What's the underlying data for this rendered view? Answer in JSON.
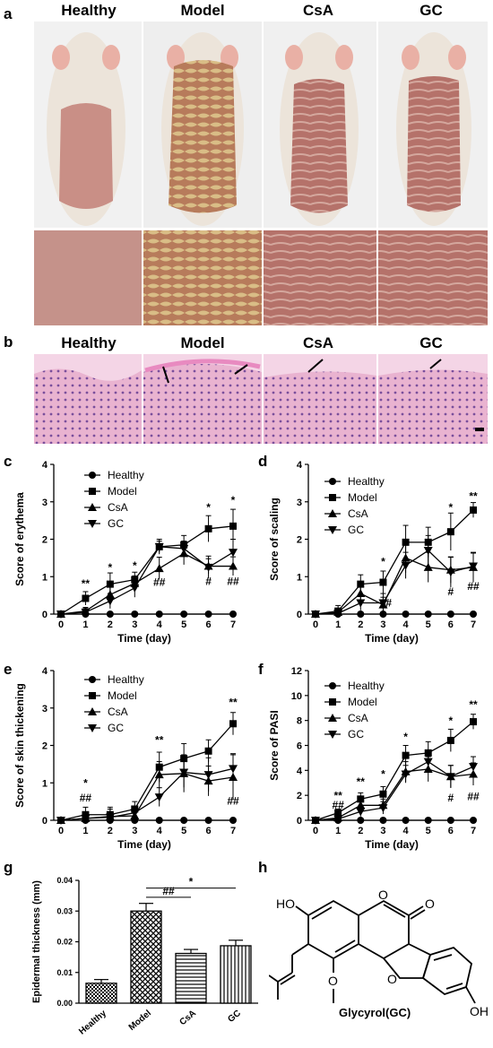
{
  "panels": {
    "a": "a",
    "b": "b",
    "c": "c",
    "d": "d",
    "e": "e",
    "f": "f",
    "g": "g",
    "h": "h"
  },
  "photo_groups": [
    "Healthy",
    "Model",
    "CsA",
    "GC"
  ],
  "histo_groups": [
    "Healthy",
    "Model",
    "CsA",
    "GC"
  ],
  "structure_label": "Glycyrol(GC)",
  "chemistry": {
    "oh1": "HO",
    "oh2": "OH",
    "ome": "O",
    "o1": "O",
    "o2": "O",
    "o3": "O"
  },
  "colors": {
    "healthy_skin": "#c98f86",
    "model_skin": "#c9a070",
    "fur": "#ece4da",
    "he_stain": "#e7a6c8",
    "nuclei": "#7a4f9c"
  },
  "chart_data": [
    {
      "id": "c",
      "type": "line",
      "ylabel": "Score of erythema",
      "xlabel": "Time (day)",
      "x": [
        0,
        1,
        2,
        3,
        4,
        5,
        6,
        7
      ],
      "xticks": [
        "0",
        "1",
        "2",
        "3",
        "4",
        "5",
        "6",
        "7"
      ],
      "ylim": [
        0,
        4
      ],
      "yticks": [
        "0",
        "1",
        "2",
        "3",
        "4"
      ],
      "legend": [
        "Healthy",
        "Model",
        "CsA",
        "GC"
      ],
      "series": [
        {
          "name": "Healthy",
          "marker": "circle",
          "values": [
            0,
            0,
            0,
            0,
            0,
            0,
            0,
            0
          ],
          "err": [
            0,
            0,
            0,
            0,
            0,
            0,
            0,
            0
          ]
        },
        {
          "name": "Model",
          "marker": "square",
          "values": [
            0,
            0.42,
            0.8,
            0.92,
            1.8,
            1.85,
            2.28,
            2.35
          ],
          "err": [
            0,
            0.18,
            0.3,
            0.2,
            0.2,
            0.25,
            0.35,
            0.45
          ]
        },
        {
          "name": "CsA",
          "marker": "triangle",
          "values": [
            0,
            0.08,
            0.52,
            0.82,
            1.22,
            1.62,
            1.28,
            1.28
          ],
          "err": [
            0,
            0.1,
            0.25,
            0.2,
            0.3,
            0.3,
            0.2,
            0.25
          ]
        },
        {
          "name": "GC",
          "marker": "triangle-down",
          "values": [
            0,
            0.05,
            0.35,
            0.7,
            1.8,
            1.75,
            1.25,
            1.65
          ],
          "err": [
            0,
            0.1,
            0.2,
            0.25,
            0.15,
            0.2,
            0.3,
            0.35
          ]
        }
      ],
      "annotations": [
        {
          "x": 1,
          "y": 0.72,
          "text": "**"
        },
        {
          "x": 2,
          "y": 1.15,
          "text": "*"
        },
        {
          "x": 3,
          "y": 1.2,
          "text": "*"
        },
        {
          "x": 4,
          "y": 0.75,
          "text": "##"
        },
        {
          "x": 6,
          "y": 2.75,
          "text": "*"
        },
        {
          "x": 6,
          "y": 0.78,
          "text": "#"
        },
        {
          "x": 7,
          "y": 2.95,
          "text": "*"
        },
        {
          "x": 7,
          "y": 0.78,
          "text": "##"
        }
      ]
    },
    {
      "id": "d",
      "type": "line",
      "ylabel": "Score of scaling",
      "xlabel": "Time (day)",
      "x": [
        0,
        1,
        2,
        3,
        4,
        5,
        6,
        7
      ],
      "xticks": [
        "0",
        "1",
        "2",
        "3",
        "4",
        "5",
        "6",
        "7"
      ],
      "ylim": [
        0,
        4
      ],
      "yticks": [
        "0",
        "1",
        "2",
        "3",
        "4"
      ],
      "legend": [
        "Healthy",
        "Model",
        "CsA",
        "GC"
      ],
      "series": [
        {
          "name": "Healthy",
          "marker": "circle",
          "values": [
            0,
            0,
            0,
            0,
            0,
            0,
            0,
            0
          ],
          "err": [
            0,
            0,
            0,
            0,
            0,
            0,
            0,
            0
          ]
        },
        {
          "name": "Model",
          "marker": "square",
          "values": [
            0,
            0.08,
            0.8,
            0.85,
            1.92,
            1.92,
            2.2,
            2.78
          ],
          "err": [
            0,
            0.15,
            0.25,
            0.3,
            0.45,
            0.4,
            0.5,
            0.2
          ]
        },
        {
          "name": "CsA",
          "marker": "triangle",
          "values": [
            0,
            0.05,
            0.55,
            0.25,
            1.5,
            1.25,
            1.18,
            1.25
          ],
          "err": [
            0,
            0.1,
            0.3,
            0.2,
            0.4,
            0.4,
            0.35,
            0.4
          ]
        },
        {
          "name": "GC",
          "marker": "triangle-down",
          "values": [
            0,
            0.02,
            0.3,
            0.3,
            1.3,
            1.7,
            1.12,
            1.28
          ],
          "err": [
            0,
            0.1,
            0.2,
            0.25,
            0.35,
            0.4,
            0.4,
            0.35
          ]
        }
      ],
      "annotations": [
        {
          "x": 3,
          "y": 1.3,
          "text": "*"
        },
        {
          "x": 3.25,
          "y": 0.2,
          "text": "#"
        },
        {
          "x": 6,
          "y": 2.75,
          "text": "*"
        },
        {
          "x": 6,
          "y": 0.5,
          "text": "#"
        },
        {
          "x": 7,
          "y": 3.05,
          "text": "**"
        },
        {
          "x": 7,
          "y": 0.65,
          "text": "##"
        }
      ]
    },
    {
      "id": "e",
      "type": "line",
      "ylabel": "Score of skin thickening",
      "xlabel": "Time (day)",
      "x": [
        0,
        1,
        2,
        3,
        4,
        5,
        6,
        7
      ],
      "xticks": [
        "0",
        "1",
        "2",
        "3",
        "4",
        "5",
        "6",
        "7"
      ],
      "ylim": [
        0,
        4
      ],
      "yticks": [
        "0",
        "1",
        "2",
        "3",
        "4"
      ],
      "legend": [
        "Healthy",
        "Model",
        "CsA",
        "GC"
      ],
      "series": [
        {
          "name": "Healthy",
          "marker": "circle",
          "values": [
            0,
            0,
            0,
            0,
            0,
            0,
            0,
            0
          ],
          "err": [
            0,
            0,
            0,
            0,
            0,
            0,
            0,
            0
          ]
        },
        {
          "name": "Model",
          "marker": "square",
          "values": [
            0,
            0.15,
            0.15,
            0.3,
            1.42,
            1.65,
            1.85,
            2.58
          ],
          "err": [
            0,
            0.2,
            0.2,
            0.2,
            0.4,
            0.4,
            0.3,
            0.3
          ]
        },
        {
          "name": "CsA",
          "marker": "triangle",
          "values": [
            0,
            0.05,
            0.1,
            0.12,
            1.22,
            1.25,
            1.05,
            1.15
          ],
          "err": [
            0,
            0.1,
            0.2,
            0.15,
            0.35,
            0.5,
            0.4,
            0.6
          ]
        },
        {
          "name": "GC",
          "marker": "triangle-down",
          "values": [
            0,
            0.05,
            0.08,
            0.2,
            0.62,
            1.28,
            1.22,
            1.38
          ],
          "err": [
            0,
            0.1,
            0.15,
            0.15,
            0.25,
            0.4,
            0.45,
            0.4
          ]
        }
      ],
      "annotations": [
        {
          "x": 1,
          "y": 0.9,
          "text": "*"
        },
        {
          "x": 1,
          "y": 0.5,
          "text": "##"
        },
        {
          "x": 4,
          "y": 2.05,
          "text": "**"
        },
        {
          "x": 7,
          "y": 3.05,
          "text": "**"
        },
        {
          "x": 7,
          "y": 0.42,
          "text": "##"
        }
      ]
    },
    {
      "id": "f",
      "type": "line",
      "ylabel": "Score of PASI",
      "xlabel": "Time (day)",
      "x": [
        0,
        1,
        2,
        3,
        4,
        5,
        6,
        7
      ],
      "xticks": [
        "0",
        "1",
        "2",
        "3",
        "4",
        "5",
        "6",
        "7"
      ],
      "ylim": [
        0,
        12
      ],
      "yticks": [
        "0",
        "2",
        "4",
        "6",
        "8",
        "10",
        "12"
      ],
      "legend": [
        "Healthy",
        "Model",
        "CsA",
        "GC"
      ],
      "series": [
        {
          "name": "Healthy",
          "marker": "circle",
          "values": [
            0,
            0,
            0,
            0,
            0,
            0,
            0,
            0
          ],
          "err": [
            0,
            0,
            0,
            0,
            0,
            0,
            0,
            0
          ]
        },
        {
          "name": "Model",
          "marker": "square",
          "values": [
            0,
            0.6,
            1.7,
            2.1,
            5.2,
            5.4,
            6.4,
            7.9
          ],
          "err": [
            0,
            0.3,
            0.5,
            0.6,
            0.8,
            0.9,
            0.9,
            0.6
          ]
        },
        {
          "name": "CsA",
          "marker": "triangle",
          "values": [
            0,
            0.2,
            1.2,
            1.2,
            3.9,
            4.1,
            3.5,
            3.7
          ],
          "err": [
            0,
            0.2,
            0.5,
            0.5,
            0.8,
            1.0,
            0.9,
            0.9
          ]
        },
        {
          "name": "GC",
          "marker": "triangle-down",
          "values": [
            0,
            0.1,
            0.7,
            1.0,
            3.7,
            4.7,
            3.5,
            4.3
          ],
          "err": [
            0,
            0.2,
            0.4,
            0.5,
            0.7,
            0.9,
            0.9,
            0.8
          ]
        }
      ],
      "annotations": [
        {
          "x": 1,
          "y": 1.7,
          "text": "**"
        },
        {
          "x": 1,
          "y": 0.95,
          "text": "##"
        },
        {
          "x": 2,
          "y": 2.8,
          "text": "**"
        },
        {
          "x": 3,
          "y": 3.4,
          "text": "*"
        },
        {
          "x": 4,
          "y": 6.4,
          "text": "*"
        },
        {
          "x": 6,
          "y": 7.7,
          "text": "*"
        },
        {
          "x": 6,
          "y": 1.5,
          "text": "#"
        },
        {
          "x": 7,
          "y": 9.0,
          "text": "**"
        },
        {
          "x": 7,
          "y": 1.6,
          "text": "##"
        }
      ]
    },
    {
      "id": "g",
      "type": "bar",
      "ylabel": "Epidermal thickness (mm)",
      "xlabel": "",
      "categories": [
        "Healthy",
        "Model",
        "CsA",
        "GC"
      ],
      "values": [
        0.0065,
        0.03,
        0.0162,
        0.0187
      ],
      "err": [
        0.0012,
        0.0025,
        0.0013,
        0.0018
      ],
      "patterns": [
        "checker",
        "crosshatch",
        "horizontal",
        "vertical"
      ],
      "ylim": [
        0,
        0.04
      ],
      "yticks": [
        "0.00",
        "0.01",
        "0.02",
        "0.03",
        "0.04"
      ],
      "brackets": [
        {
          "from": "Model",
          "to": "CsA",
          "y": 0.0345,
          "text": "##"
        },
        {
          "from": "Model",
          "to": "GC",
          "y": 0.0375,
          "text": "*"
        }
      ]
    }
  ]
}
